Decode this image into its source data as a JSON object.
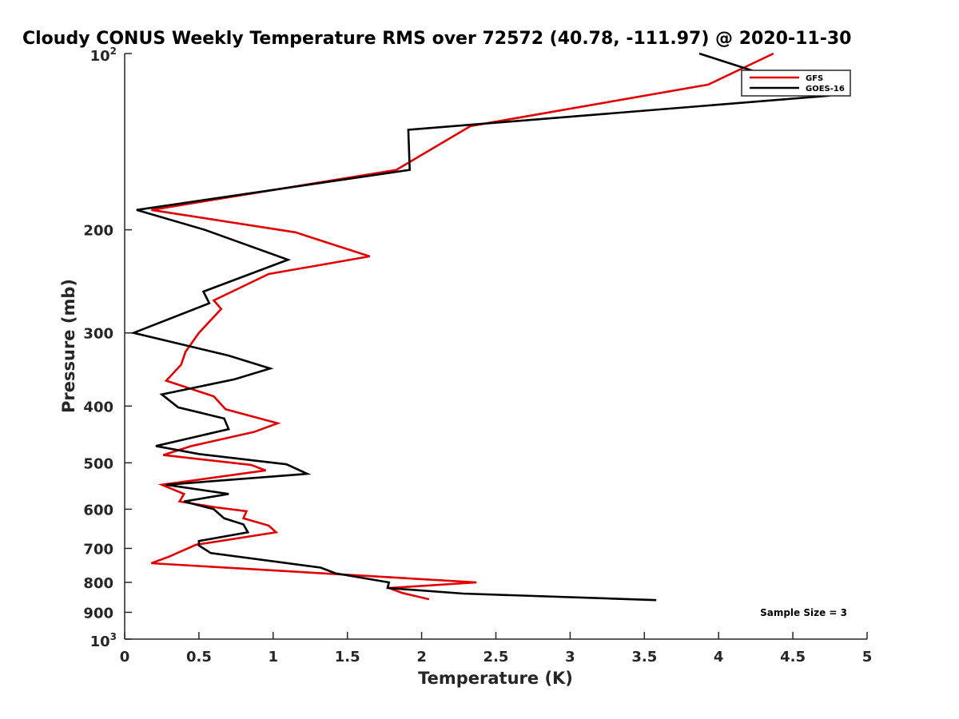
{
  "chart_data": {
    "type": "line",
    "title": "Cloudy CONUS Weekly Temperature RMS over 72572 (40.78, -111.97) @ 2020-11-30",
    "xlabel": "Temperature (K)",
    "ylabel": "Pressure (mb)",
    "xlim": [
      0,
      5
    ],
    "ylim": [
      100,
      1000
    ],
    "y_scale": "log",
    "y_reversed": true,
    "grid": false,
    "legend_position": "top-right",
    "x_ticks": [
      "0",
      "0.5",
      "1",
      "1.5",
      "2",
      "2.5",
      "3",
      "3.5",
      "4",
      "4.5",
      "5"
    ],
    "y_ticks": [
      {
        "value": 100,
        "base": "10",
        "exp": "2"
      },
      {
        "value": 200,
        "label": "200"
      },
      {
        "value": 300,
        "label": "300"
      },
      {
        "value": 400,
        "label": "400"
      },
      {
        "value": 500,
        "label": "500"
      },
      {
        "value": 600,
        "label": "600"
      },
      {
        "value": 700,
        "label": "700"
      },
      {
        "value": 800,
        "label": "800"
      },
      {
        "value": 900,
        "label": "900"
      },
      {
        "value": 1000,
        "base": "10",
        "exp": "3"
      }
    ],
    "annotation": "Sample Size = 3",
    "series": [
      {
        "name": "GFS",
        "color": "#e00000",
        "points": [
          [
            4.37,
            100
          ],
          [
            3.93,
            113
          ],
          [
            2.33,
            133
          ],
          [
            1.83,
            158
          ],
          [
            0.18,
            185
          ],
          [
            1.15,
            202
          ],
          [
            1.65,
            222
          ],
          [
            0.97,
            238
          ],
          [
            0.6,
            264
          ],
          [
            0.65,
            273
          ],
          [
            0.5,
            300
          ],
          [
            0.41,
            323
          ],
          [
            0.38,
            340
          ],
          [
            0.28,
            362
          ],
          [
            0.6,
            385
          ],
          [
            0.68,
            405
          ],
          [
            1.03,
            428
          ],
          [
            0.87,
            443
          ],
          [
            0.45,
            468
          ],
          [
            0.26,
            485
          ],
          [
            0.85,
            504
          ],
          [
            0.95,
            515
          ],
          [
            0.25,
            545
          ],
          [
            0.4,
            565
          ],
          [
            0.37,
            582
          ],
          [
            0.6,
            595
          ],
          [
            0.82,
            605
          ],
          [
            0.8,
            622
          ],
          [
            0.97,
            640
          ],
          [
            1.02,
            657
          ],
          [
            0.48,
            690
          ],
          [
            0.3,
            723
          ],
          [
            0.18,
            742
          ],
          [
            2.37,
            800
          ],
          [
            1.78,
            818
          ],
          [
            1.87,
            834
          ],
          [
            2.05,
            855
          ]
        ]
      },
      {
        "name": "GOES-16",
        "color": "#000000",
        "points": [
          [
            3.87,
            100
          ],
          [
            4.75,
            118
          ],
          [
            1.91,
            135
          ],
          [
            1.92,
            158
          ],
          [
            0.08,
            185
          ],
          [
            0.54,
            200
          ],
          [
            1.1,
            225
          ],
          [
            0.53,
            255
          ],
          [
            0.57,
            267
          ],
          [
            0.06,
            300
          ],
          [
            0.7,
            328
          ],
          [
            0.98,
            345
          ],
          [
            0.74,
            360
          ],
          [
            0.25,
            382
          ],
          [
            0.36,
            402
          ],
          [
            0.67,
            420
          ],
          [
            0.7,
            438
          ],
          [
            0.21,
            468
          ],
          [
            0.5,
            483
          ],
          [
            1.09,
            503
          ],
          [
            1.23,
            522
          ],
          [
            0.28,
            545
          ],
          [
            0.7,
            565
          ],
          [
            0.4,
            582
          ],
          [
            0.6,
            600
          ],
          [
            0.67,
            622
          ],
          [
            0.8,
            637
          ],
          [
            0.83,
            657
          ],
          [
            0.5,
            680
          ],
          [
            0.5,
            692
          ],
          [
            0.58,
            713
          ],
          [
            1.32,
            755
          ],
          [
            1.42,
            772
          ],
          [
            1.78,
            800
          ],
          [
            1.77,
            818
          ],
          [
            2.28,
            836
          ],
          [
            3.58,
            858
          ]
        ]
      }
    ]
  }
}
